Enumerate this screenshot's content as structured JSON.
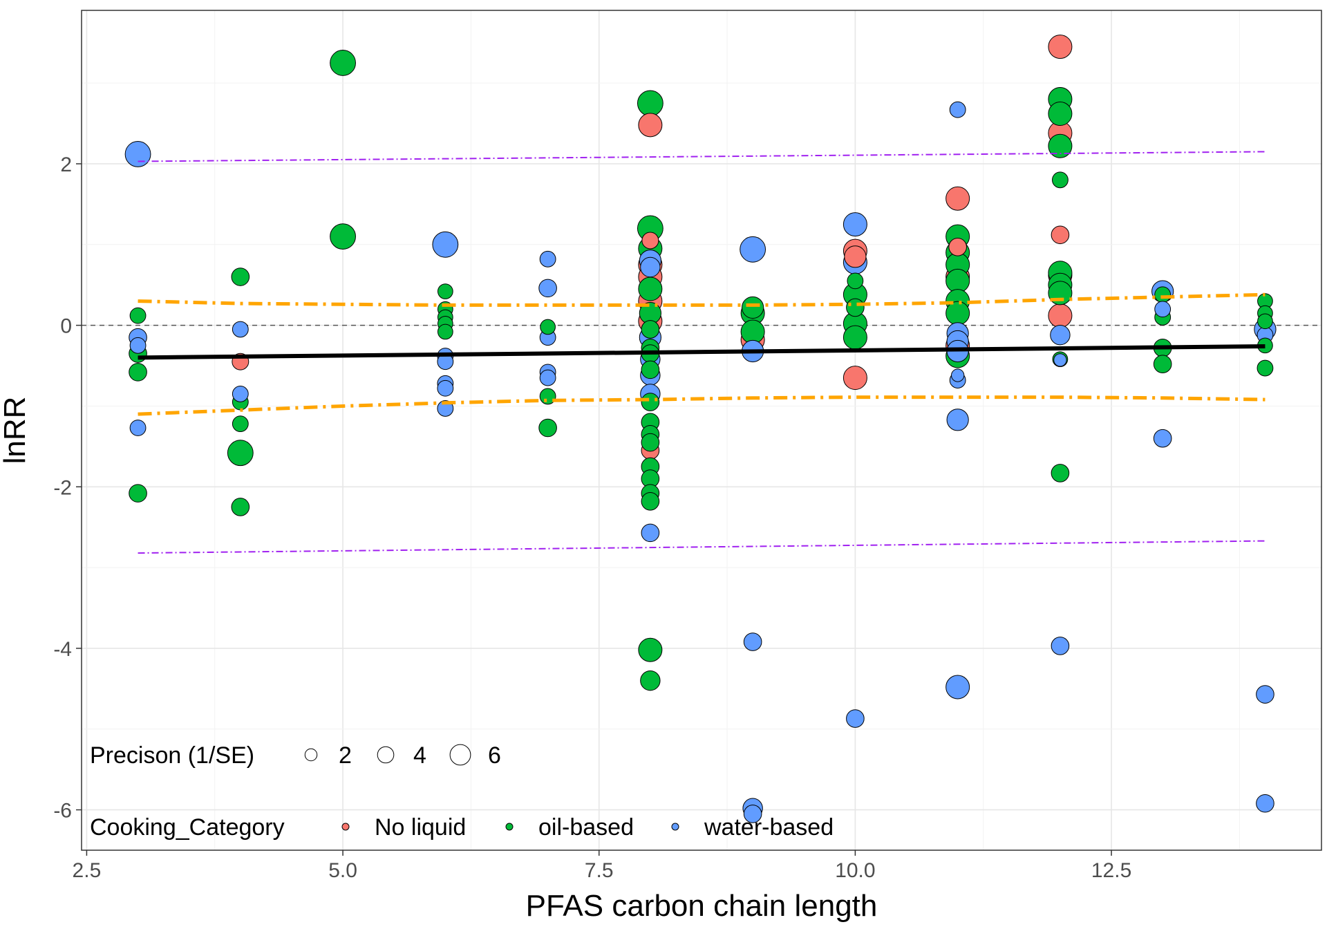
{
  "chart_data": {
    "type": "scatter",
    "xlabel": "PFAS carbon chain length",
    "ylabel": "lnRR",
    "xlim": [
      2.45,
      14.55
    ],
    "ylim": [
      -6.5,
      3.9
    ],
    "x_ticks": [
      2.5,
      5.0,
      7.5,
      10.0,
      12.5
    ],
    "x_tick_labels": [
      "2.5",
      "5.0",
      "7.5",
      "10.0",
      "12.5"
    ],
    "y_ticks": [
      -6,
      -4,
      -2,
      0,
      2
    ],
    "y_tick_labels": [
      "-6",
      "-4",
      "-2",
      "0",
      "2"
    ],
    "grid": true,
    "reference_line": {
      "y": 0,
      "style": "dashed",
      "color": "#555555"
    },
    "colors": {
      "No liquid": "#F8766D",
      "oil-based": "#00BA38",
      "water-based": "#619CFF"
    },
    "legend": {
      "size_title": "Precison (1/SE)",
      "size_entries": [
        {
          "label": "2",
          "value": 2
        },
        {
          "label": "4",
          "value": 4
        },
        {
          "label": "6",
          "value": 6
        }
      ],
      "color_title": "Cooking_Category",
      "color_entries": [
        "No liquid",
        "oil-based",
        "water-based"
      ],
      "placement": "bottom-left inside"
    },
    "fit_line": {
      "x": [
        3,
        14
      ],
      "y": [
        -0.4,
        -0.26
      ],
      "color": "#000000"
    },
    "confidence_band": {
      "color": "#FFA500",
      "upper": {
        "x": [
          3,
          4,
          5,
          6,
          7,
          8,
          9,
          10,
          11,
          12,
          13,
          14
        ],
        "y": [
          0.3,
          0.27,
          0.26,
          0.25,
          0.25,
          0.25,
          0.25,
          0.26,
          0.28,
          0.32,
          0.35,
          0.38
        ]
      },
      "lower": {
        "x": [
          3,
          4,
          5,
          6,
          7,
          8,
          9,
          10,
          11,
          12,
          13,
          14
        ],
        "y": [
          -1.1,
          -1.05,
          -1.0,
          -0.96,
          -0.93,
          -0.92,
          -0.9,
          -0.89,
          -0.89,
          -0.89,
          -0.9,
          -0.92
        ]
      }
    },
    "prediction_band": {
      "color": "#A020F0",
      "upper": {
        "x": [
          3,
          14
        ],
        "y": [
          2.03,
          2.15
        ]
      },
      "lower": {
        "x": [
          3,
          14
        ],
        "y": [
          -2.82,
          -2.67
        ]
      }
    },
    "series": [
      {
        "name": "No liquid",
        "points": [
          [
            4,
            -0.45,
            3.2
          ],
          [
            8,
            2.48,
            5.0
          ],
          [
            8,
            1.05,
            3.2
          ],
          [
            8,
            0.75,
            5.0
          ],
          [
            8,
            0.6,
            5.0
          ],
          [
            8,
            0.3,
            5.0
          ],
          [
            8,
            0.05,
            5.0
          ],
          [
            8,
            -1.55,
            3.5
          ],
          [
            9,
            -0.18,
            5.0
          ],
          [
            10,
            0.92,
            5.0
          ],
          [
            10,
            0.85,
            4.5
          ],
          [
            10,
            -0.65,
            5.0
          ],
          [
            11,
            1.57,
            5.0
          ],
          [
            11,
            0.97,
            3.5
          ],
          [
            11,
            0.6,
            5.0
          ],
          [
            11,
            -0.25,
            5.0
          ],
          [
            12,
            3.45,
            5.0
          ],
          [
            12,
            2.38,
            5.0
          ],
          [
            12,
            1.12,
            3.5
          ],
          [
            12,
            0.62,
            5.0
          ],
          [
            12,
            0.12,
            5.0
          ]
        ]
      },
      {
        "name": "oil-based",
        "points": [
          [
            3,
            0.12,
            3.0
          ],
          [
            3,
            -0.35,
            3.5
          ],
          [
            3,
            -0.58,
            3.5
          ],
          [
            3,
            -2.08,
            3.5
          ],
          [
            4,
            0.6,
            3.5
          ],
          [
            4,
            -0.95,
            3.0
          ],
          [
            4,
            -1.22,
            3.0
          ],
          [
            4,
            -1.58,
            5.5
          ],
          [
            4,
            -2.25,
            3.5
          ],
          [
            5,
            3.25,
            5.5
          ],
          [
            5,
            1.1,
            5.5
          ],
          [
            6,
            0.42,
            2.8
          ],
          [
            6,
            0.2,
            2.8
          ],
          [
            6,
            0.1,
            2.8
          ],
          [
            6,
            0.02,
            2.8
          ],
          [
            6,
            -0.08,
            2.8
          ],
          [
            7,
            -0.02,
            2.8
          ],
          [
            7,
            -0.88,
            3.0
          ],
          [
            7,
            -1.27,
            3.5
          ],
          [
            8,
            2.75,
            5.5
          ],
          [
            8,
            1.2,
            5.5
          ],
          [
            8,
            0.95,
            5.0
          ],
          [
            8,
            0.45,
            5.0
          ],
          [
            8,
            0.15,
            4.5
          ],
          [
            8,
            -0.05,
            3.5
          ],
          [
            8,
            -0.28,
            3.5
          ],
          [
            8,
            -0.35,
            3.5
          ],
          [
            8,
            -0.55,
            3.5
          ],
          [
            8,
            -0.95,
            3.5
          ],
          [
            8,
            -1.2,
            3.5
          ],
          [
            8,
            -1.35,
            3.5
          ],
          [
            8,
            -1.45,
            3.5
          ],
          [
            8,
            -1.75,
            3.5
          ],
          [
            8,
            -1.9,
            3.5
          ],
          [
            8,
            -2.08,
            3.5
          ],
          [
            8,
            -2.18,
            3.5
          ],
          [
            8,
            -4.02,
            5.0
          ],
          [
            8,
            -4.4,
            4.0
          ],
          [
            9,
            0.22,
            4.5
          ],
          [
            9,
            0.15,
            5.0
          ],
          [
            9,
            -0.08,
            5.0
          ],
          [
            10,
            0.55,
            3.0
          ],
          [
            10,
            0.38,
            5.0
          ],
          [
            10,
            0.22,
            3.5
          ],
          [
            10,
            0.02,
            5.0
          ],
          [
            10,
            -0.15,
            5.0
          ],
          [
            11,
            1.1,
            5.0
          ],
          [
            11,
            0.9,
            5.0
          ],
          [
            11,
            0.75,
            5.0
          ],
          [
            11,
            0.55,
            5.0
          ],
          [
            11,
            0.3,
            5.0
          ],
          [
            11,
            0.15,
            5.0
          ],
          [
            11,
            -0.38,
            5.0
          ],
          [
            12,
            2.8,
            5.0
          ],
          [
            12,
            2.62,
            5.0
          ],
          [
            12,
            2.22,
            5.0
          ],
          [
            12,
            1.8,
            3.0
          ],
          [
            12,
            0.65,
            5.0
          ],
          [
            12,
            0.5,
            5.0
          ],
          [
            12,
            0.4,
            5.0
          ],
          [
            12,
            -0.42,
            2.8
          ],
          [
            12,
            -1.83,
            3.5
          ],
          [
            13,
            0.38,
            3.0
          ],
          [
            13,
            0.1,
            3.0
          ],
          [
            13,
            -0.28,
            3.5
          ],
          [
            13,
            -0.48,
            3.5
          ],
          [
            14,
            0.3,
            2.8
          ],
          [
            14,
            0.15,
            2.8
          ],
          [
            14,
            0.05,
            2.8
          ],
          [
            14,
            -0.25,
            2.8
          ],
          [
            14,
            -0.53,
            3.0
          ]
        ]
      },
      {
        "name": "water-based",
        "points": [
          [
            3,
            2.12,
            5.5
          ],
          [
            3,
            -0.15,
            3.5
          ],
          [
            3,
            -0.25,
            3.0
          ],
          [
            3,
            -1.27,
            3.0
          ],
          [
            4,
            -0.05,
            3.0
          ],
          [
            4,
            -0.85,
            3.0
          ],
          [
            6,
            1.0,
            5.5
          ],
          [
            6,
            -0.38,
            3.0
          ],
          [
            6,
            -0.45,
            3.0
          ],
          [
            6,
            -0.72,
            3.0
          ],
          [
            6,
            -0.78,
            3.0
          ],
          [
            6,
            -1.03,
            3.0
          ],
          [
            7,
            0.82,
            3.0
          ],
          [
            7,
            0.46,
            3.5
          ],
          [
            7,
            -0.15,
            3.0
          ],
          [
            7,
            -0.58,
            3.0
          ],
          [
            7,
            -0.65,
            3.0
          ],
          [
            8,
            0.8,
            4.5
          ],
          [
            8,
            0.72,
            4.0
          ],
          [
            8,
            -0.15,
            4.5
          ],
          [
            8,
            -0.42,
            4.0
          ],
          [
            8,
            -0.62,
            4.0
          ],
          [
            8,
            -0.85,
            4.0
          ],
          [
            8,
            -2.57,
            3.5
          ],
          [
            9,
            0.94,
            5.5
          ],
          [
            9,
            -0.32,
            4.5
          ],
          [
            9,
            -3.92,
            3.5
          ],
          [
            9,
            -5.98,
            4.0
          ],
          [
            9,
            -6.05,
            3.5
          ],
          [
            10,
            1.25,
            5.0
          ],
          [
            10,
            0.78,
            5.0
          ],
          [
            10,
            -4.87,
            3.5
          ],
          [
            11,
            2.67,
            3.0
          ],
          [
            11,
            -0.1,
            4.5
          ],
          [
            11,
            -0.2,
            4.5
          ],
          [
            11,
            -0.32,
            4.5
          ],
          [
            11,
            -0.62,
            2.2
          ],
          [
            11,
            -0.68,
            3.0
          ],
          [
            11,
            -1.17,
            4.5
          ],
          [
            11,
            -4.48,
            5.0
          ],
          [
            12,
            -0.12,
            4.0
          ],
          [
            12,
            -0.43,
            2.2
          ],
          [
            12,
            -3.97,
            3.5
          ],
          [
            13,
            0.42,
            4.5
          ],
          [
            13,
            0.2,
            3.0
          ],
          [
            13,
            -1.4,
            3.5
          ],
          [
            14,
            -0.05,
            4.5
          ],
          [
            14,
            -0.12,
            3.0
          ],
          [
            14,
            -4.57,
            3.5
          ],
          [
            14,
            -5.92,
            3.5
          ]
        ]
      }
    ]
  }
}
